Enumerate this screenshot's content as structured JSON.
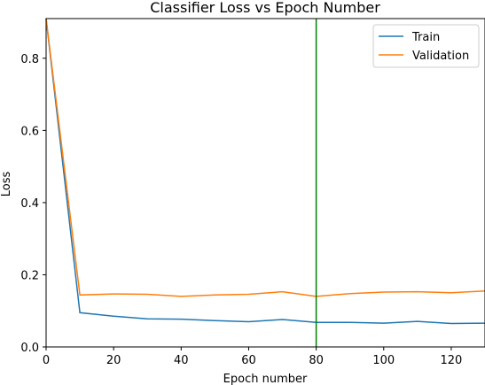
{
  "chart_data": {
    "type": "line",
    "title": "Classifier Loss vs Epoch Number",
    "xlabel": "Epoch number",
    "ylabel": "Loss",
    "xlim": [
      0,
      130
    ],
    "ylim": [
      0,
      0.91
    ],
    "xticks": [
      0,
      20,
      40,
      60,
      80,
      100,
      120
    ],
    "yticks": [
      0.0,
      0.2,
      0.4,
      0.6,
      0.8
    ],
    "grid": false,
    "legend_position": "top-right",
    "x": [
      0,
      10,
      20,
      30,
      40,
      50,
      60,
      70,
      80,
      90,
      100,
      110,
      120,
      130
    ],
    "series": [
      {
        "name": "Train",
        "color": "#1f77b4",
        "values": [
          0.91,
          0.095,
          0.085,
          0.078,
          0.077,
          0.073,
          0.07,
          0.076,
          0.068,
          0.068,
          0.066,
          0.071,
          0.065,
          0.066
        ]
      },
      {
        "name": "Validation",
        "color": "#ff7f0e",
        "values": [
          0.91,
          0.144,
          0.147,
          0.146,
          0.14,
          0.144,
          0.146,
          0.153,
          0.14,
          0.148,
          0.152,
          0.153,
          0.15,
          0.155
        ]
      }
    ],
    "vline": {
      "x": 80,
      "color": "#008000"
    }
  }
}
